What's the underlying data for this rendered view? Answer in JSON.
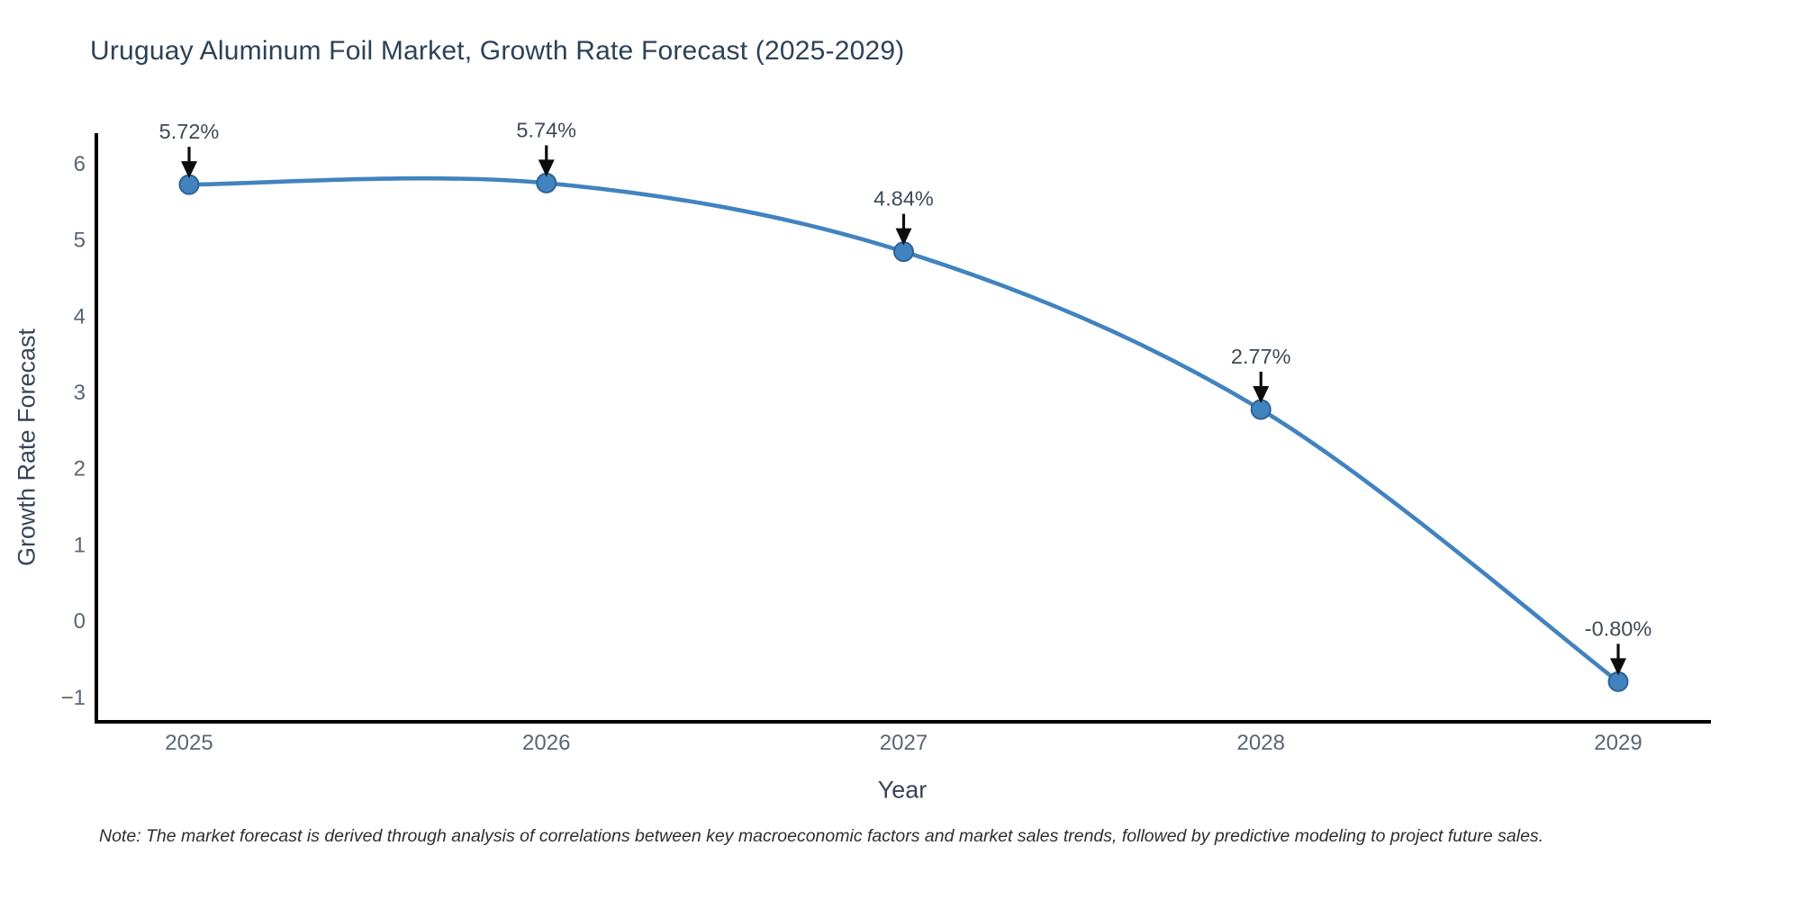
{
  "title": "Uruguay Aluminum Foil Market, Growth Rate Forecast (2025-2029)",
  "note": "Note: The market forecast is derived through analysis of correlations between key macroeconomic factors and market sales trends, followed by predictive modeling to project future sales.",
  "chart_data": {
    "type": "line",
    "title": "Uruguay Aluminum Foil Market, Growth Rate Forecast (2025-2029)",
    "xlabel": "Year",
    "ylabel": "Growth Rate Forecast",
    "categories": [
      "2025",
      "2026",
      "2027",
      "2028",
      "2029"
    ],
    "values": [
      5.72,
      5.74,
      4.84,
      2.77,
      -0.8
    ],
    "point_labels": [
      "5.72%",
      "5.74%",
      "4.84%",
      "2.77%",
      "-0.80%"
    ],
    "yticks": [
      -1,
      0,
      1,
      2,
      3,
      4,
      5,
      6
    ],
    "ytick_labels": [
      "−1",
      "0",
      "1",
      "2",
      "3",
      "4",
      "5",
      "6"
    ],
    "ylim": [
      -1.35,
      6.37
    ],
    "grid": false,
    "legend": "none",
    "line_shape": "spline",
    "annotation_style": "arrow-down-to-point",
    "colors": {
      "line": "#4183bf",
      "marker_fill": "#4183bf",
      "marker_edge": "#2d6396",
      "axis_line": "#000000",
      "arrow": "#0d0d0d",
      "tick_text": "#5b6573",
      "annotation_text": "#3f4956",
      "title_text": "#2c4257",
      "axis_title_text": "#384459",
      "note_text": "#2e2e2e",
      "background": "#ffffff"
    }
  }
}
